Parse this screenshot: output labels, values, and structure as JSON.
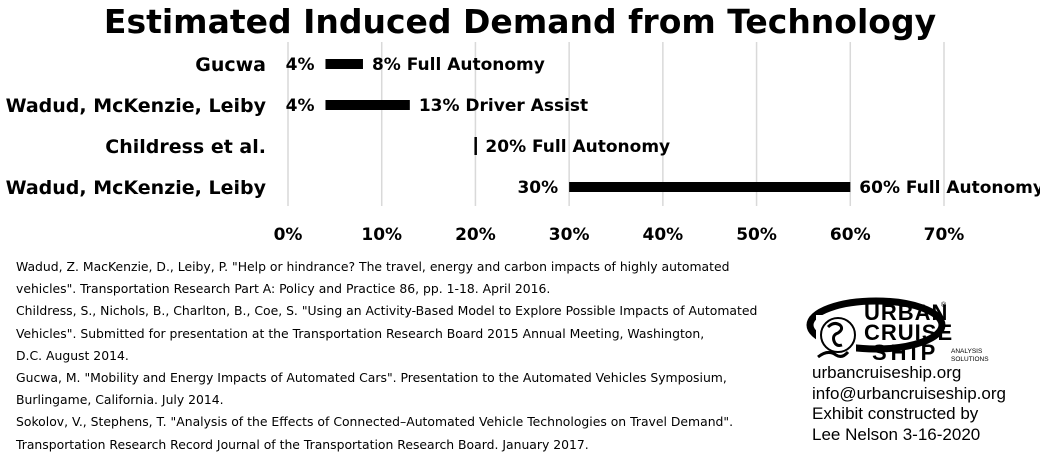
{
  "chart_data": {
    "type": "bar",
    "subtype": "floating-range",
    "title": "Estimated Induced Demand from Technology",
    "xlabel": "",
    "ylabel": "",
    "xlim": [
      0,
      70
    ],
    "x_ticks": [
      "0%",
      "10%",
      "20%",
      "30%",
      "40%",
      "50%",
      "60%",
      "70%"
    ],
    "grid": true,
    "categories": [
      "Gucwa",
      "Wadud, McKenzie, Leiby",
      "Childress et al.",
      "Wadud, McKenzie, Leiby"
    ],
    "ranges": [
      {
        "low": 4,
        "high": 8,
        "low_label": "4%",
        "high_label": "8% Full Autonomy"
      },
      {
        "low": 4,
        "high": 13,
        "low_label": "4%",
        "high_label": "13% Driver Assist"
      },
      {
        "low": 20,
        "high": 20,
        "low_label": "",
        "high_label": "20% Full Autonomy"
      },
      {
        "low": 30,
        "high": 60,
        "low_label": "30%",
        "high_label": "60% Full Autonomy"
      }
    ],
    "bar_color": "#000000",
    "grid_color": "#d9d9d9"
  },
  "references": [
    "Wadud, Z. MacKenzie, D., Leiby, P. \"Help or hindrance? The travel, energy and carbon impacts of highly automated",
    "vehicles\". Transportation Research Part A: Policy and Practice 86, pp. 1-18. April 2016.",
    "Childress, S., Nichols, B., Charlton, B., Coe, S. \"Using an Activity-Based Model to Explore Possible Impacts of Automated",
    "Vehicles\". Submitted for presentation at the Transportation Research Board 2015 Annual Meeting, Washington,",
    "D.C. August 2014.",
    "Gucwa, M. \"Mobility and Energy Impacts of Automated Cars\". Presentation to the Automated Vehicles Symposium,",
    "Burlingame, California. July 2014.",
    "Sokolov, V., Stephens, T. \"Analysis of the Effects of Connected–Automated Vehicle Technologies on Travel Demand\".",
    "Transportation Research Record Journal of the Transportation Research Board. January 2017."
  ],
  "logo": {
    "line1": "URBAN",
    "line2": "CRUISE",
    "line3": "SHIP",
    "tagline1": "ANALYSIS",
    "tagline2": "SOLUTIONS",
    "registered": "®"
  },
  "contact": {
    "website": "urbancruiseship.org",
    "email": "info@urbancruiseship.org",
    "credit1": "Exhibit constructed by",
    "credit2": "Lee Nelson 3-16-2020"
  }
}
